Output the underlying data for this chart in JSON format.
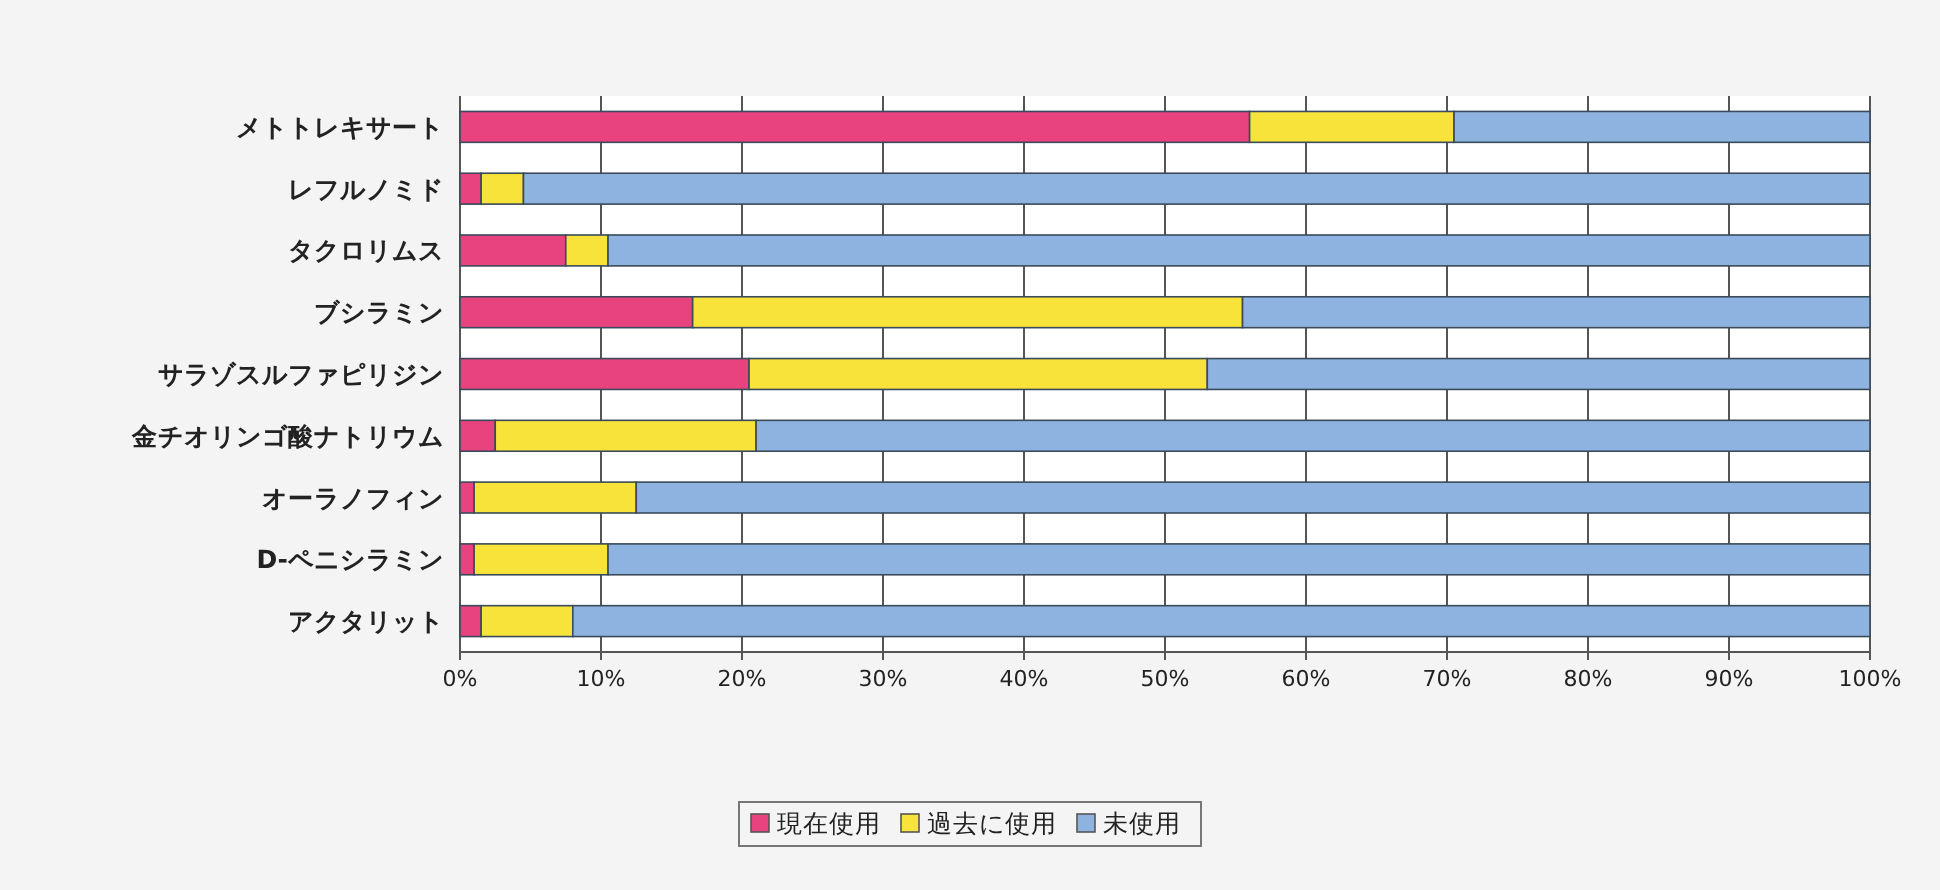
{
  "chart_data": {
    "type": "bar",
    "orientation": "horizontal",
    "stacked": true,
    "categories": [
      "メトトレキサート",
      "レフルノミド",
      "タクロリムス",
      "ブシラミン",
      "サラゾスルファピリジン",
      "金チオリンゴ酸ナトリウム",
      "オーラノフィン",
      "D-ペニシラミン",
      "アクタリット"
    ],
    "series": [
      {
        "name": "現在使用",
        "color": "#e8437f",
        "values": [
          56,
          1.5,
          7.5,
          16.5,
          20.5,
          2.5,
          1,
          1,
          1.5
        ]
      },
      {
        "name": "過去に使用",
        "color": "#f7e33a",
        "values": [
          14.5,
          3,
          3,
          39,
          32.5,
          18.5,
          11.5,
          9.5,
          6.5
        ]
      },
      {
        "name": "未使用",
        "color": "#8fb3e0",
        "values": [
          29.5,
          95.5,
          89.5,
          44.5,
          47,
          79,
          87.5,
          89.5,
          92
        ]
      }
    ],
    "xlim": [
      0,
      100
    ],
    "xticks": [
      {
        "value": 0,
        "label": "0%"
      },
      {
        "value": 10,
        "label": "10%"
      },
      {
        "value": 20,
        "label": "20%"
      },
      {
        "value": 30,
        "label": "30%"
      },
      {
        "value": 40,
        "label": "40%"
      },
      {
        "value": 50,
        "label": "50%"
      },
      {
        "value": 60,
        "label": "60%"
      },
      {
        "value": 70,
        "label": "70%"
      },
      {
        "value": 80,
        "label": "80%"
      },
      {
        "value": 90,
        "label": "90%"
      },
      {
        "value": 100,
        "label": "100%"
      }
    ],
    "grid": "x",
    "legend": "bottom"
  }
}
